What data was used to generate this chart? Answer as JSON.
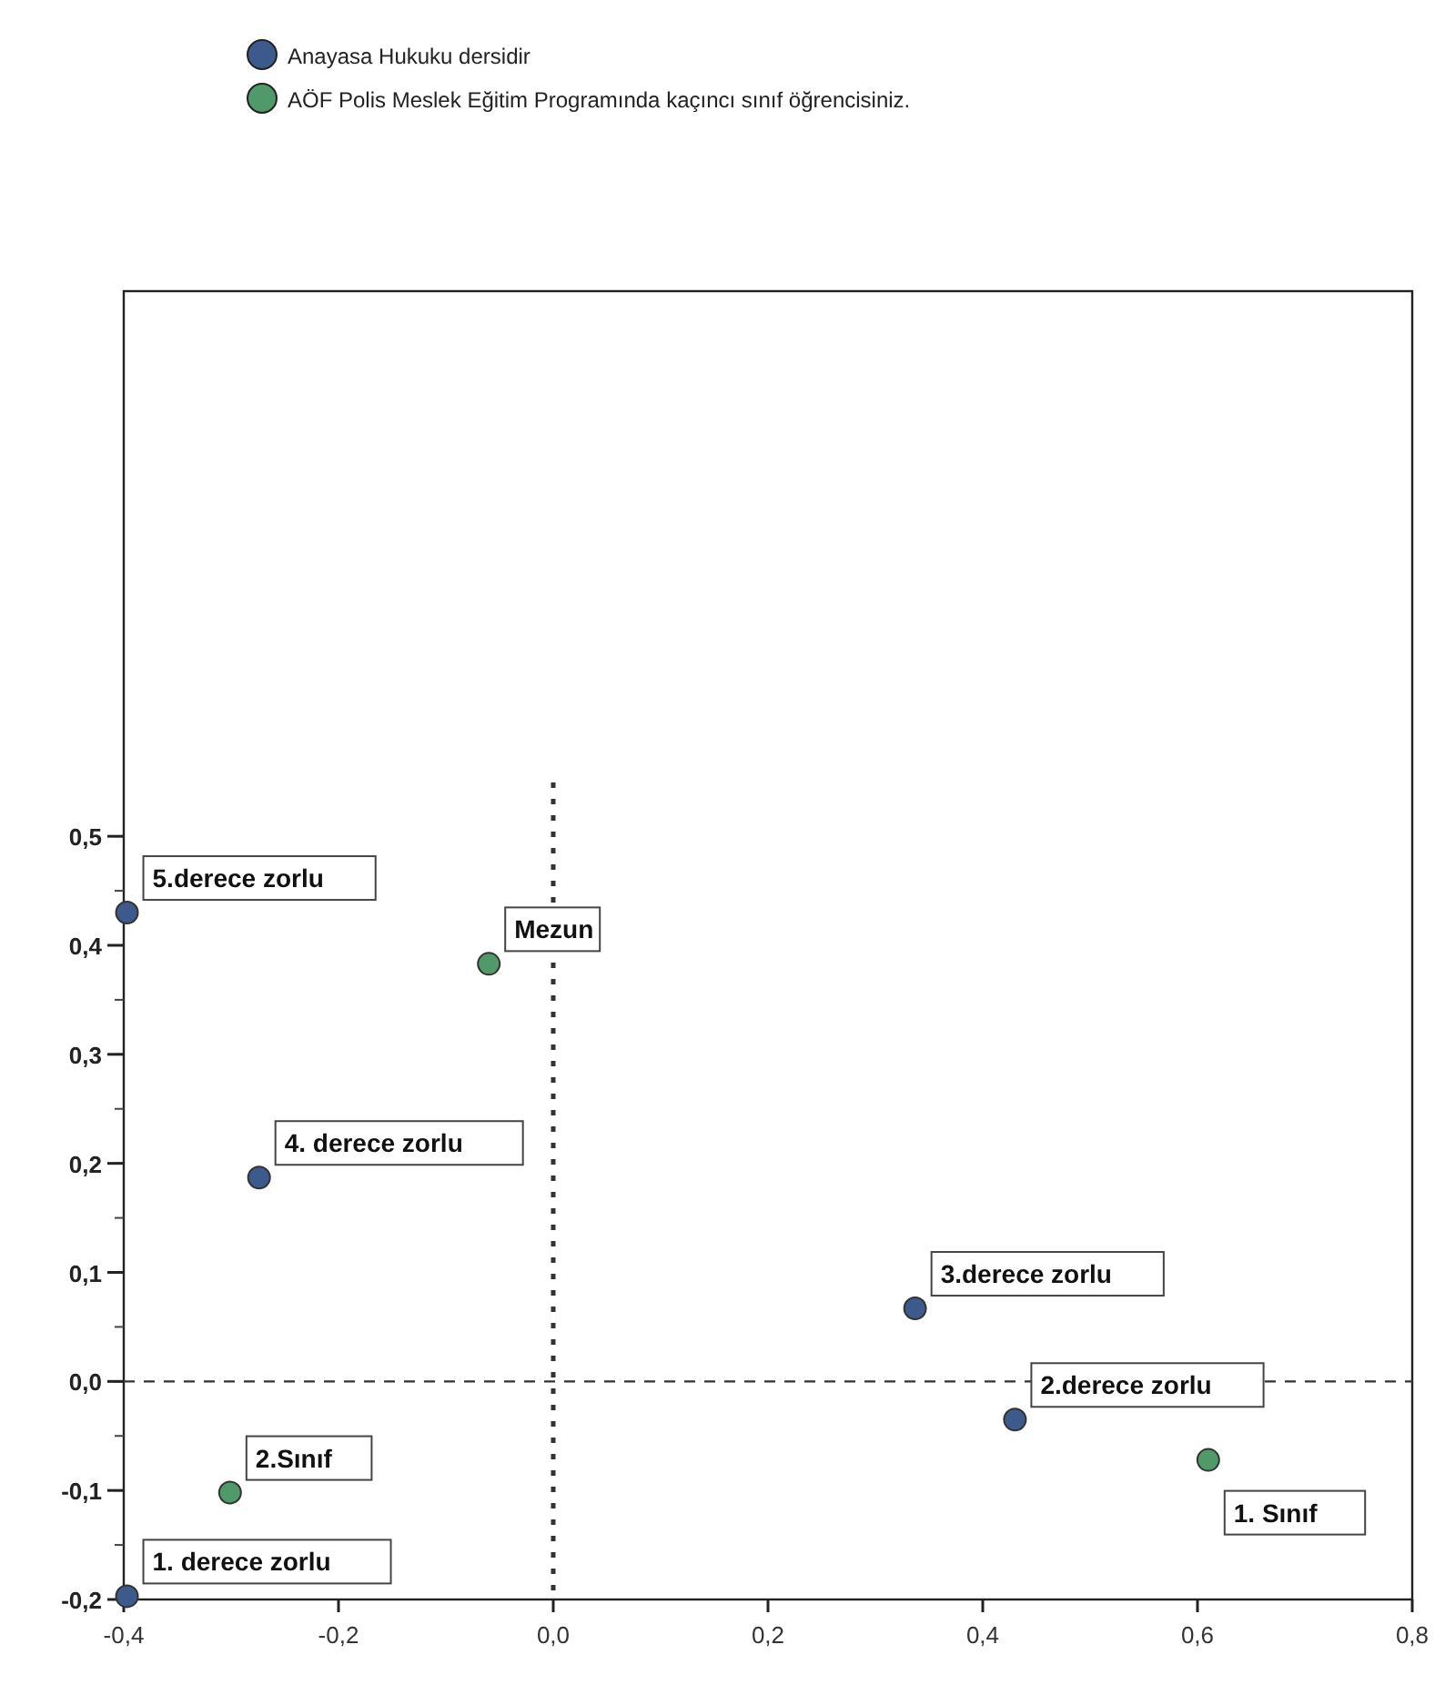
{
  "chart_data": {
    "type": "scatter",
    "series": [
      {
        "name": "Anayasa Hukuku dersidir",
        "color": "#3d5a8c",
        "x": [
          -0.397,
          0.43,
          0.337,
          -0.274,
          -0.397
        ],
        "values": [
          -0.197,
          -0.035,
          0.067,
          0.187,
          0.43
        ]
      },
      {
        "name": "AÖF Polis Meslek Eğitim Programında kaçıncı sınıf öğrencisiniz.",
        "color": "#4f9a68",
        "x": [
          0.61,
          -0.301,
          -0.06
        ],
        "values": [
          -0.072,
          -0.102,
          0.383
        ]
      }
    ],
    "xlim": [
      -0.4,
      0.8
    ],
    "xticks": [
      {
        "value": -0.4,
        "label": "-0,4"
      },
      {
        "value": -0.2,
        "label": "-0,2"
      },
      {
        "value": 0,
        "label": "0,0"
      },
      {
        "value": 0.2,
        "label": "0,2"
      },
      {
        "value": 0.4,
        "label": "0,4"
      },
      {
        "value": 0.6,
        "label": "0,6"
      },
      {
        "value": 0.8,
        "label": "0,8"
      }
    ],
    "ylim": [
      -0.2,
      1.0
    ],
    "yticks": [
      {
        "value": -0.2,
        "label": "-0,2"
      },
      {
        "value": -0.1,
        "label": "-0,1"
      },
      {
        "value": 0,
        "label": "0,0"
      },
      {
        "value": 0.1,
        "label": "0,1"
      },
      {
        "value": 0.2,
        "label": "0,2"
      },
      {
        "value": 0.3,
        "label": "0,3"
      },
      {
        "value": 0.4,
        "label": "0,4"
      },
      {
        "value": 0.5,
        "label": "0,5"
      }
    ],
    "ref_lines": [
      {
        "axis": "y",
        "value": 0,
        "line_style": "dashed"
      },
      {
        "axis": "x",
        "value": 0,
        "line_style": "dotted"
      }
    ],
    "annotations": [
      {
        "text": "1. derece zorlu",
        "x": -0.397,
        "y": -0.197
      },
      {
        "text": "2.derece zorlu",
        "x": 0.43,
        "y": -0.035
      },
      {
        "text": "3.derece zorlu",
        "x": 0.337,
        "y": 0.067
      },
      {
        "text": "4. derece zorlu",
        "x": -0.274,
        "y": 0.187
      },
      {
        "text": "5.derece zorlu",
        "x": -0.397,
        "y": 0.43
      },
      {
        "text": "1. Sınıf",
        "x": 0.61,
        "y": -0.072
      },
      {
        "text": "2.Sınıf",
        "x": -0.301,
        "y": -0.102
      },
      {
        "text": "Mezun",
        "x": -0.06,
        "y": 0.383
      }
    ],
    "marker": "circle",
    "grid": false,
    "legend": "top left"
  }
}
